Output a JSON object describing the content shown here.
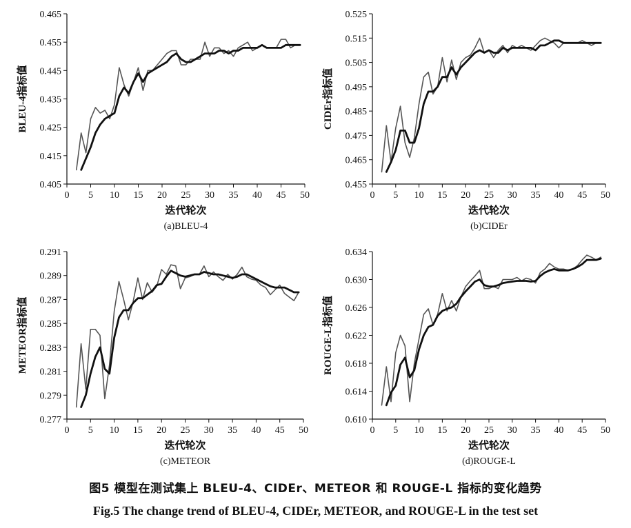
{
  "caption_zh": "图5 模型在测试集上 BLEU-4、CIDEr、METEOR 和 ROUGE-L 指标的变化趋势",
  "caption_en": "Fig.5 The change trend of BLEU-4, CIDEr, METEOR, and ROUGE-L in the test set",
  "chart_data": [
    {
      "type": "line",
      "subcaption": "(a)BLEU-4",
      "xlabel": "迭代轮次",
      "ylabel": "BLEU-4指标值",
      "xlim": [
        0,
        50
      ],
      "ylim": [
        0.405,
        0.465
      ],
      "xticks": [
        "0",
        "5",
        "10",
        "15",
        "20",
        "25",
        "30",
        "35",
        "40",
        "45",
        "50"
      ],
      "yticks": [
        "0.405",
        "0.415",
        "0.425",
        "0.435",
        "0.445",
        "0.455",
        "0.465"
      ],
      "series": [
        {
          "x": [
            2,
            3,
            4,
            5,
            6,
            7,
            8,
            9,
            10,
            11,
            12,
            13,
            14,
            15,
            16,
            17,
            18,
            19,
            20,
            21,
            22,
            23,
            24,
            25,
            26,
            27,
            28,
            29,
            30,
            31,
            32,
            33,
            34,
            35,
            36,
            37,
            38,
            39,
            40,
            41,
            42,
            43,
            44,
            45,
            46,
            47,
            48,
            49
          ],
          "y": [
            0.41,
            0.423,
            0.416,
            0.428,
            0.432,
            0.43,
            0.431,
            0.428,
            0.433,
            0.446,
            0.44,
            0.436,
            0.441,
            0.446,
            0.438,
            0.445,
            0.445,
            0.447,
            0.449,
            0.451,
            0.452,
            0.452,
            0.447,
            0.447,
            0.449,
            0.449,
            0.449,
            0.455,
            0.45,
            0.453,
            0.453,
            0.451,
            0.452,
            0.45,
            0.453,
            0.454,
            0.455,
            0.452,
            0.453,
            0.454,
            0.453,
            0.453,
            0.453,
            0.456,
            0.456,
            0.453,
            0.454,
            0.454
          ]
        },
        {
          "x": [
            3,
            4,
            5,
            6,
            7,
            8,
            9,
            10,
            11,
            12,
            13,
            14,
            15,
            16,
            17,
            18,
            19,
            20,
            21,
            22,
            23,
            24,
            25,
            26,
            27,
            28,
            29,
            30,
            31,
            32,
            33,
            34,
            35,
            36,
            37,
            38,
            39,
            40,
            41,
            42,
            43,
            44,
            45,
            46,
            47,
            48,
            49
          ],
          "y": [
            0.41,
            0.414,
            0.418,
            0.423,
            0.426,
            0.428,
            0.429,
            0.43,
            0.436,
            0.439,
            0.437,
            0.441,
            0.444,
            0.441,
            0.444,
            0.445,
            0.446,
            0.447,
            0.448,
            0.45,
            0.451,
            0.449,
            0.448,
            0.448,
            0.449,
            0.45,
            0.451,
            0.451,
            0.451,
            0.452,
            0.452,
            0.451,
            0.452,
            0.452,
            0.453,
            0.453,
            0.453,
            0.453,
            0.454,
            0.453,
            0.453,
            0.453,
            0.453,
            0.454,
            0.454,
            0.454,
            0.454
          ]
        }
      ]
    },
    {
      "type": "line",
      "subcaption": "(b)CIDEr",
      "xlabel": "迭代轮次",
      "ylabel": "CIDEr指标值",
      "xlim": [
        0,
        50
      ],
      "ylim": [
        0.455,
        0.525
      ],
      "xticks": [
        "0",
        "5",
        "10",
        "15",
        "20",
        "25",
        "30",
        "35",
        "40",
        "45",
        "50"
      ],
      "yticks": [
        "0.455",
        "0.465",
        "0.475",
        "0.485",
        "0.495",
        "0.505",
        "0.515",
        "0.525"
      ],
      "series": [
        {
          "x": [
            2,
            3,
            4,
            5,
            6,
            7,
            8,
            9,
            10,
            11,
            12,
            13,
            14,
            15,
            16,
            17,
            18,
            19,
            20,
            21,
            22,
            23,
            24,
            25,
            26,
            27,
            28,
            29,
            30,
            31,
            32,
            33,
            34,
            35,
            36,
            37,
            38,
            39,
            40,
            41,
            42,
            43,
            44,
            45,
            46,
            47,
            48,
            49
          ],
          "y": [
            0.46,
            0.479,
            0.464,
            0.478,
            0.487,
            0.472,
            0.466,
            0.474,
            0.488,
            0.499,
            0.501,
            0.492,
            0.495,
            0.507,
            0.497,
            0.506,
            0.498,
            0.505,
            0.507,
            0.508,
            0.511,
            0.515,
            0.509,
            0.51,
            0.507,
            0.51,
            0.512,
            0.509,
            0.512,
            0.511,
            0.512,
            0.511,
            0.51,
            0.512,
            0.514,
            0.515,
            0.514,
            0.513,
            0.511,
            0.513,
            0.513,
            0.513,
            0.513,
            0.514,
            0.513,
            0.512,
            0.513,
            0.513
          ]
        },
        {
          "x": [
            3,
            4,
            5,
            6,
            7,
            8,
            9,
            10,
            11,
            12,
            13,
            14,
            15,
            16,
            17,
            18,
            19,
            20,
            21,
            22,
            23,
            24,
            25,
            26,
            27,
            28,
            29,
            30,
            31,
            32,
            33,
            34,
            35,
            36,
            37,
            38,
            39,
            40,
            41,
            42,
            43,
            44,
            45,
            46,
            47,
            48,
            49
          ],
          "y": [
            0.46,
            0.464,
            0.469,
            0.477,
            0.477,
            0.472,
            0.472,
            0.478,
            0.488,
            0.493,
            0.493,
            0.495,
            0.499,
            0.499,
            0.503,
            0.5,
            0.503,
            0.505,
            0.507,
            0.509,
            0.51,
            0.509,
            0.51,
            0.509,
            0.509,
            0.511,
            0.51,
            0.511,
            0.511,
            0.511,
            0.511,
            0.511,
            0.51,
            0.512,
            0.512,
            0.513,
            0.514,
            0.514,
            0.513,
            0.513,
            0.513,
            0.513,
            0.513,
            0.513,
            0.513,
            0.513,
            0.513
          ]
        }
      ]
    },
    {
      "type": "line",
      "subcaption": "(c)METEOR",
      "xlabel": "迭代轮次",
      "ylabel": "METEOR指标值",
      "xlim": [
        0,
        50
      ],
      "ylim": [
        0.277,
        0.291
      ],
      "xticks": [
        "0",
        "5",
        "10",
        "15",
        "20",
        "25",
        "30",
        "35",
        "40",
        "45",
        "50"
      ],
      "yticks": [
        "0.277",
        "0.279",
        "0.281",
        "0.283",
        "0.285",
        "0.287",
        "0.289",
        "0.291"
      ],
      "series": [
        {
          "x": [
            2,
            3,
            4,
            5,
            6,
            7,
            8,
            9,
            10,
            11,
            12,
            13,
            14,
            15,
            16,
            17,
            18,
            19,
            20,
            21,
            22,
            23,
            24,
            25,
            26,
            27,
            28,
            29,
            30,
            31,
            32,
            33,
            34,
            35,
            36,
            37,
            38,
            39,
            40,
            41,
            42,
            43,
            44,
            45,
            46,
            47,
            48,
            49
          ],
          "y": [
            0.278,
            0.2833,
            0.2795,
            0.2845,
            0.2845,
            0.284,
            0.2787,
            0.2815,
            0.286,
            0.2885,
            0.287,
            0.2853,
            0.2868,
            0.2888,
            0.287,
            0.2884,
            0.2876,
            0.2881,
            0.2895,
            0.2891,
            0.2899,
            0.2898,
            0.2879,
            0.2888,
            0.2889,
            0.2891,
            0.2891,
            0.2898,
            0.2889,
            0.2893,
            0.2889,
            0.2886,
            0.2891,
            0.2887,
            0.2891,
            0.2897,
            0.2889,
            0.2887,
            0.2886,
            0.2882,
            0.288,
            0.2874,
            0.2878,
            0.2882,
            0.2875,
            0.2872,
            0.2869,
            0.2876
          ]
        },
        {
          "x": [
            3,
            4,
            5,
            6,
            7,
            8,
            9,
            10,
            11,
            12,
            13,
            14,
            15,
            16,
            17,
            18,
            19,
            20,
            21,
            22,
            23,
            24,
            25,
            26,
            27,
            28,
            29,
            30,
            31,
            32,
            33,
            34,
            35,
            36,
            37,
            38,
            39,
            40,
            41,
            42,
            43,
            44,
            45,
            46,
            47,
            48,
            49
          ],
          "y": [
            0.278,
            0.279,
            0.2808,
            0.2822,
            0.283,
            0.2812,
            0.2808,
            0.2838,
            0.2855,
            0.2861,
            0.2861,
            0.2867,
            0.2871,
            0.2871,
            0.2874,
            0.2877,
            0.2882,
            0.2883,
            0.2889,
            0.2894,
            0.2892,
            0.289,
            0.2889,
            0.289,
            0.2891,
            0.2891,
            0.2893,
            0.2892,
            0.2891,
            0.2891,
            0.289,
            0.2889,
            0.2888,
            0.2889,
            0.2891,
            0.2891,
            0.2889,
            0.2887,
            0.2885,
            0.2883,
            0.2881,
            0.288,
            0.288,
            0.288,
            0.2878,
            0.2876,
            0.2876
          ]
        }
      ]
    },
    {
      "type": "line",
      "subcaption": "(d)ROUGE-L",
      "xlabel": "迭代轮次",
      "ylabel": "ROUGE-L指标值",
      "xlim": [
        0,
        50
      ],
      "ylim": [
        0.61,
        0.634
      ],
      "xticks": [
        "0",
        "5",
        "10",
        "15",
        "20",
        "25",
        "30",
        "35",
        "40",
        "45",
        "50"
      ],
      "yticks": [
        "0.610",
        "0.614",
        "0.618",
        "0.622",
        "0.626",
        "0.630",
        "0.634"
      ],
      "series": [
        {
          "x": [
            2,
            3,
            4,
            5,
            6,
            7,
            8,
            9,
            10,
            11,
            12,
            13,
            14,
            15,
            16,
            17,
            18,
            19,
            20,
            21,
            22,
            23,
            24,
            25,
            26,
            27,
            28,
            29,
            30,
            31,
            32,
            33,
            34,
            35,
            36,
            37,
            38,
            39,
            40,
            41,
            42,
            43,
            44,
            45,
            46,
            47,
            48,
            49
          ],
          "y": [
            0.612,
            0.6175,
            0.6125,
            0.6195,
            0.622,
            0.6205,
            0.6125,
            0.618,
            0.6215,
            0.625,
            0.6258,
            0.6235,
            0.625,
            0.628,
            0.6255,
            0.627,
            0.6255,
            0.6275,
            0.629,
            0.6298,
            0.6305,
            0.6313,
            0.6287,
            0.6287,
            0.629,
            0.6287,
            0.63,
            0.63,
            0.63,
            0.6303,
            0.6298,
            0.6302,
            0.63,
            0.6295,
            0.631,
            0.6315,
            0.6323,
            0.6318,
            0.6315,
            0.6315,
            0.6313,
            0.6315,
            0.632,
            0.6328,
            0.6335,
            0.6332,
            0.6328,
            0.6332
          ]
        },
        {
          "x": [
            3,
            4,
            5,
            6,
            7,
            8,
            9,
            10,
            11,
            12,
            13,
            14,
            15,
            16,
            17,
            18,
            19,
            20,
            21,
            22,
            23,
            24,
            25,
            26,
            27,
            28,
            29,
            30,
            31,
            32,
            33,
            34,
            35,
            36,
            37,
            38,
            39,
            40,
            41,
            42,
            43,
            44,
            45,
            46,
            47,
            48,
            49
          ],
          "y": [
            0.612,
            0.6138,
            0.6148,
            0.6178,
            0.6188,
            0.616,
            0.617,
            0.62,
            0.622,
            0.6232,
            0.6235,
            0.6248,
            0.6255,
            0.6258,
            0.626,
            0.6265,
            0.6275,
            0.6283,
            0.629,
            0.6297,
            0.63,
            0.6292,
            0.629,
            0.629,
            0.6292,
            0.6295,
            0.6296,
            0.6297,
            0.6298,
            0.6298,
            0.6298,
            0.6297,
            0.6298,
            0.6305,
            0.631,
            0.6313,
            0.6315,
            0.6313,
            0.6313,
            0.6313,
            0.6315,
            0.6318,
            0.6322,
            0.6328,
            0.6328,
            0.6328,
            0.633
          ]
        }
      ]
    }
  ]
}
